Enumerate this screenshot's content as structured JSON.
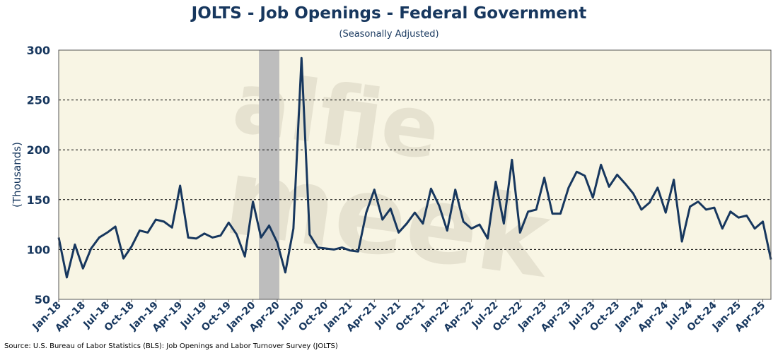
{
  "title": "JOLTS - Job Openings - Federal Government",
  "subtitle": "(Seasonally Adjusted)",
  "source": "Source: U.S. Bureau of Labor Statistics (BLS): Job Openings and Labor Turnover Survey (JOLTS)",
  "watermark": [
    "alfie",
    "meek"
  ],
  "colors": {
    "line": "#17375e",
    "plot_bg": "#f8f5e4",
    "recession": "#bdbdbd",
    "text": "#17375e"
  },
  "chart_data": {
    "type": "line",
    "title": "JOLTS - Job Openings - Federal Government",
    "subtitle": "(Seasonally Adjusted)",
    "ylabel": "(Thousands)",
    "xlabel": "",
    "ylim": [
      50,
      300
    ],
    "yticks": [
      50,
      100,
      150,
      200,
      250,
      300
    ],
    "grid": "horizontal dashed",
    "legend": "none",
    "recession_shading": [
      "Feb-20",
      "Apr-20"
    ],
    "x_tick_labels": [
      "Jan-18",
      "Apr-18",
      "Jul-18",
      "Oct-18",
      "Jan-19",
      "Apr-19",
      "Jul-19",
      "Oct-19",
      "Jan-20",
      "Apr-20",
      "Jul-20",
      "Oct-20",
      "Jan-21",
      "Apr-21",
      "Jul-21",
      "Oct-21",
      "Jan-22",
      "Apr-22",
      "Jul-22",
      "Oct-22",
      "Jan-23",
      "Apr-23",
      "Jul-23",
      "Oct-23",
      "Jan-24",
      "Apr-24",
      "Jul-24",
      "Oct-24",
      "Jan-25",
      "Apr-25"
    ],
    "series": [
      {
        "x_start": "Jan-18",
        "frequency": "monthly",
        "values": [
          112,
          72,
          105,
          81,
          101,
          112,
          117,
          123,
          91,
          103,
          119,
          117,
          130,
          128,
          122,
          164,
          112,
          111,
          116,
          112,
          114,
          127,
          115,
          93,
          148,
          112,
          124,
          107,
          77,
          121,
          292,
          115,
          102,
          101,
          100,
          102,
          99,
          98,
          137,
          160,
          130,
          141,
          117,
          126,
          137,
          126,
          161,
          144,
          119,
          160,
          128,
          121,
          125,
          111,
          168,
          126,
          190,
          117,
          138,
          140,
          172,
          136,
          136,
          162,
          178,
          174,
          152,
          185,
          163,
          175,
          166,
          156,
          140,
          147,
          162,
          137,
          170,
          108,
          143,
          148,
          140,
          142,
          121,
          138,
          132,
          134,
          121,
          128,
          90
        ]
      }
    ]
  }
}
